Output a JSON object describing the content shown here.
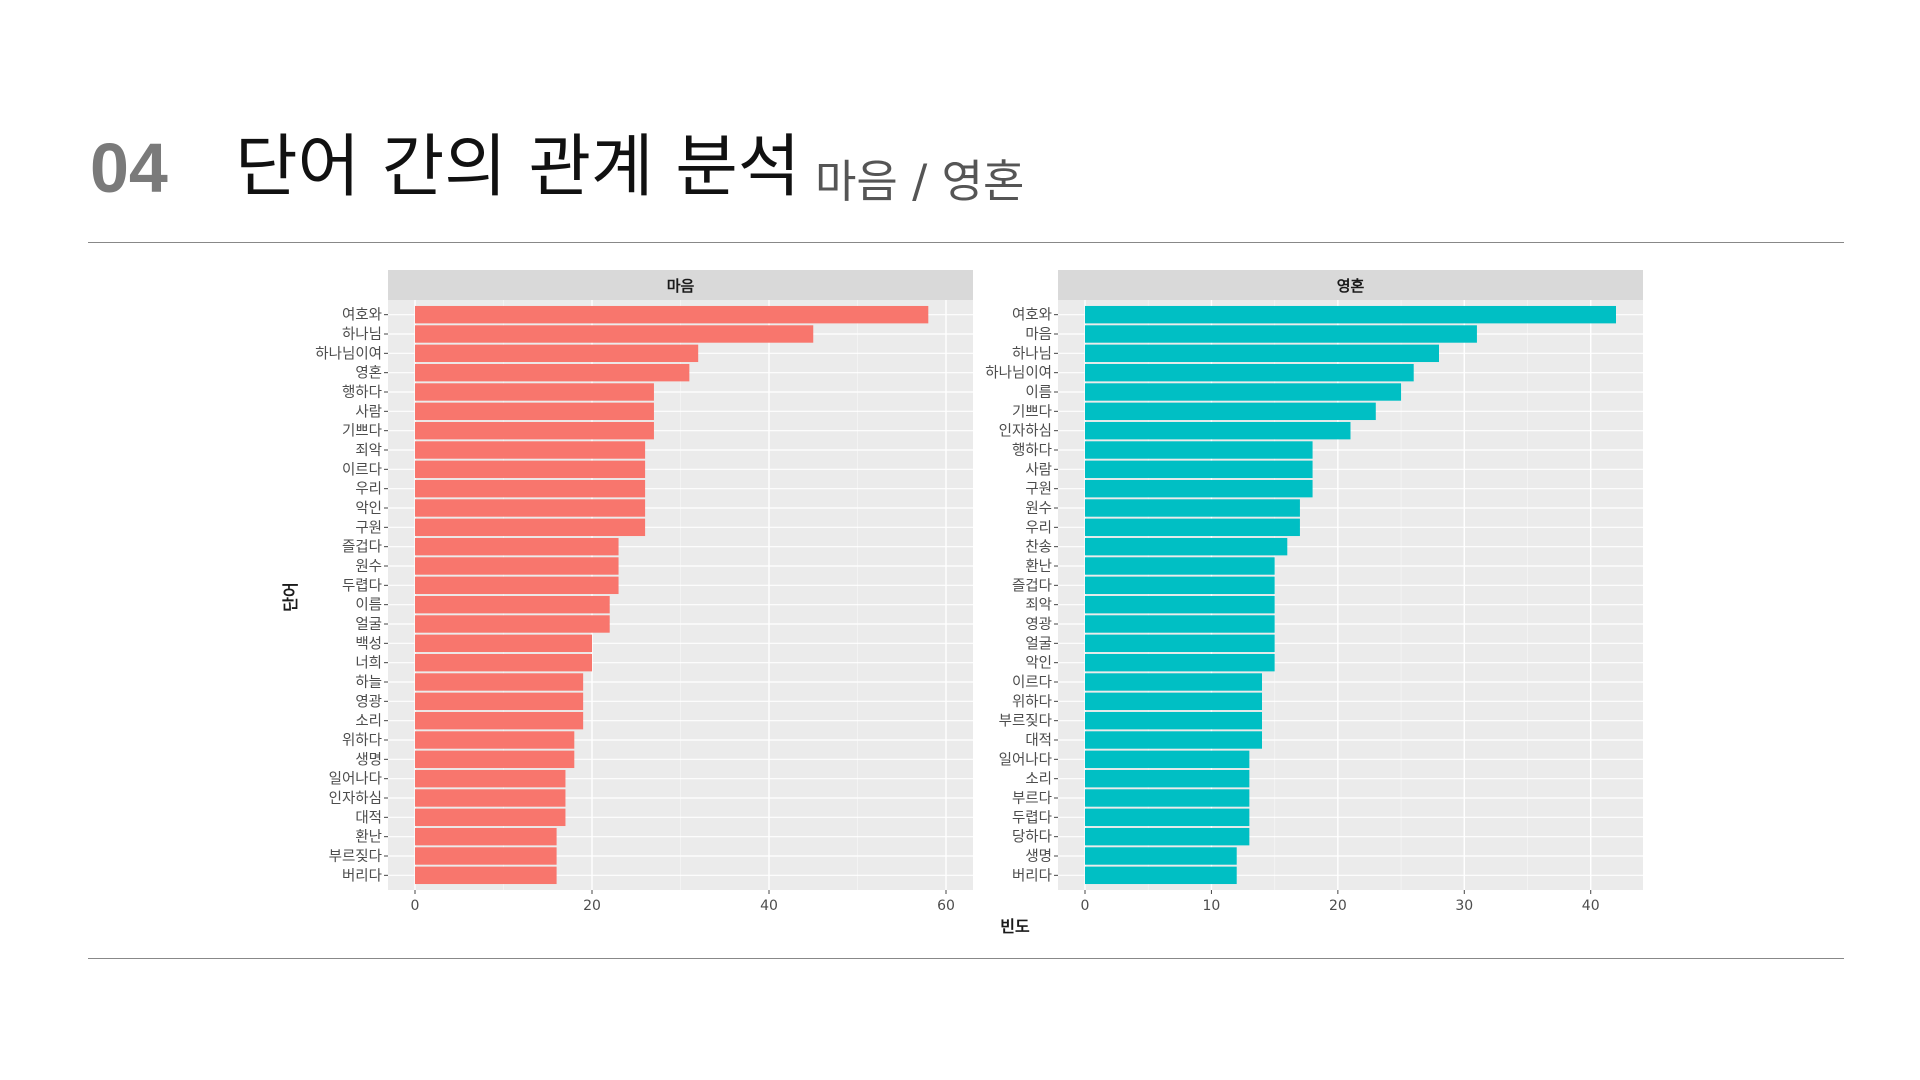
{
  "header": {
    "number": "04",
    "title": "단어 간의 관계 분석",
    "subtitle": "마음 / 영혼"
  },
  "colors": {
    "series_1": "#F8766D",
    "series_2": "#00BFC4",
    "panel_bg": "#EBEBEB",
    "strip_bg": "#D9D9D9"
  },
  "chart_data": {
    "type": "bar",
    "orientation": "horizontal",
    "xlabel": "빈도",
    "ylabel": "단어",
    "grid": true,
    "legend": "none",
    "panels": [
      {
        "name": "마음",
        "xlim": [
          0,
          60
        ],
        "xticks": [
          0,
          20,
          40,
          60
        ],
        "categories": [
          "여호와",
          "하나님",
          "하나님이여",
          "영혼",
          "행하다",
          "사람",
          "기쁘다",
          "죄악",
          "이르다",
          "우리",
          "악인",
          "구원",
          "즐겁다",
          "원수",
          "두렵다",
          "이름",
          "얼굴",
          "백성",
          "너희",
          "하늘",
          "영광",
          "소리",
          "위하다",
          "생명",
          "일어나다",
          "인자하심",
          "대적",
          "환난",
          "부르짖다",
          "버리다"
        ],
        "values": [
          58,
          45,
          32,
          31,
          27,
          27,
          27,
          26,
          26,
          26,
          26,
          26,
          23,
          23,
          23,
          22,
          22,
          20,
          20,
          19,
          19,
          19,
          18,
          18,
          17,
          17,
          17,
          16,
          16,
          16
        ]
      },
      {
        "name": "영혼",
        "xlim": [
          0,
          42
        ],
        "xticks": [
          0,
          10,
          20,
          30,
          40
        ],
        "categories": [
          "여호와",
          "마음",
          "하나님",
          "하나님이여",
          "이름",
          "기쁘다",
          "인자하심",
          "행하다",
          "사람",
          "구원",
          "원수",
          "우리",
          "찬송",
          "환난",
          "즐겁다",
          "죄악",
          "영광",
          "얼굴",
          "악인",
          "이르다",
          "위하다",
          "부르짖다",
          "대적",
          "일어나다",
          "소리",
          "부르다",
          "두렵다",
          "당하다",
          "생명",
          "버리다"
        ],
        "values": [
          42,
          31,
          28,
          26,
          25,
          23,
          21,
          18,
          18,
          18,
          17,
          17,
          16,
          15,
          15,
          15,
          15,
          15,
          15,
          14,
          14,
          14,
          14,
          13,
          13,
          13,
          13,
          13,
          12,
          12
        ]
      }
    ]
  }
}
